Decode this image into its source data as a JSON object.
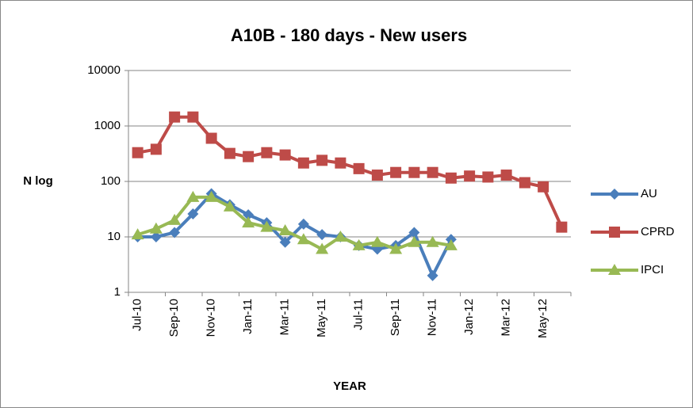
{
  "chart_data": {
    "type": "line",
    "title": "A10B - 180 days - New users",
    "x_label": "YEAR",
    "y_label": "N log",
    "categories": [
      "Jul-10",
      null,
      "Sep-10",
      null,
      "Nov-10",
      null,
      "Jan-11",
      null,
      "Mar-11",
      null,
      "May-11",
      null,
      "Jul-11",
      null,
      "Sep-11",
      null,
      "Nov-11",
      null,
      "Jan-12",
      null,
      "Mar-12",
      null,
      "May-12",
      null
    ],
    "series": [
      {
        "name": "AU",
        "color": "#4a7ebb",
        "marker": "diamond",
        "values": [
          10,
          10,
          12,
          26,
          60,
          38,
          25,
          18,
          8,
          17,
          11,
          10,
          7,
          6,
          7,
          12,
          2,
          9,
          null,
          null,
          null,
          null,
          null,
          null
        ]
      },
      {
        "name": "CPRD",
        "color": "#be4b48",
        "marker": "square",
        "values": [
          330,
          380,
          1450,
          1450,
          600,
          320,
          280,
          330,
          300,
          215,
          240,
          215,
          170,
          130,
          145,
          145,
          145,
          115,
          125,
          120,
          130,
          95,
          80,
          15
        ]
      },
      {
        "name": "IPCI",
        "color": "#98b954",
        "marker": "triangle",
        "values": [
          11,
          14,
          20,
          52,
          52,
          35,
          18,
          15,
          13,
          9,
          6,
          10,
          7,
          8,
          6,
          8,
          8,
          7,
          null,
          null,
          null,
          null,
          null,
          null
        ]
      }
    ],
    "ylim": [
      1,
      10000
    ],
    "yticks": [
      1,
      10,
      100,
      1000,
      10000
    ],
    "log_scale": true,
    "grid": true,
    "legend": "right"
  }
}
